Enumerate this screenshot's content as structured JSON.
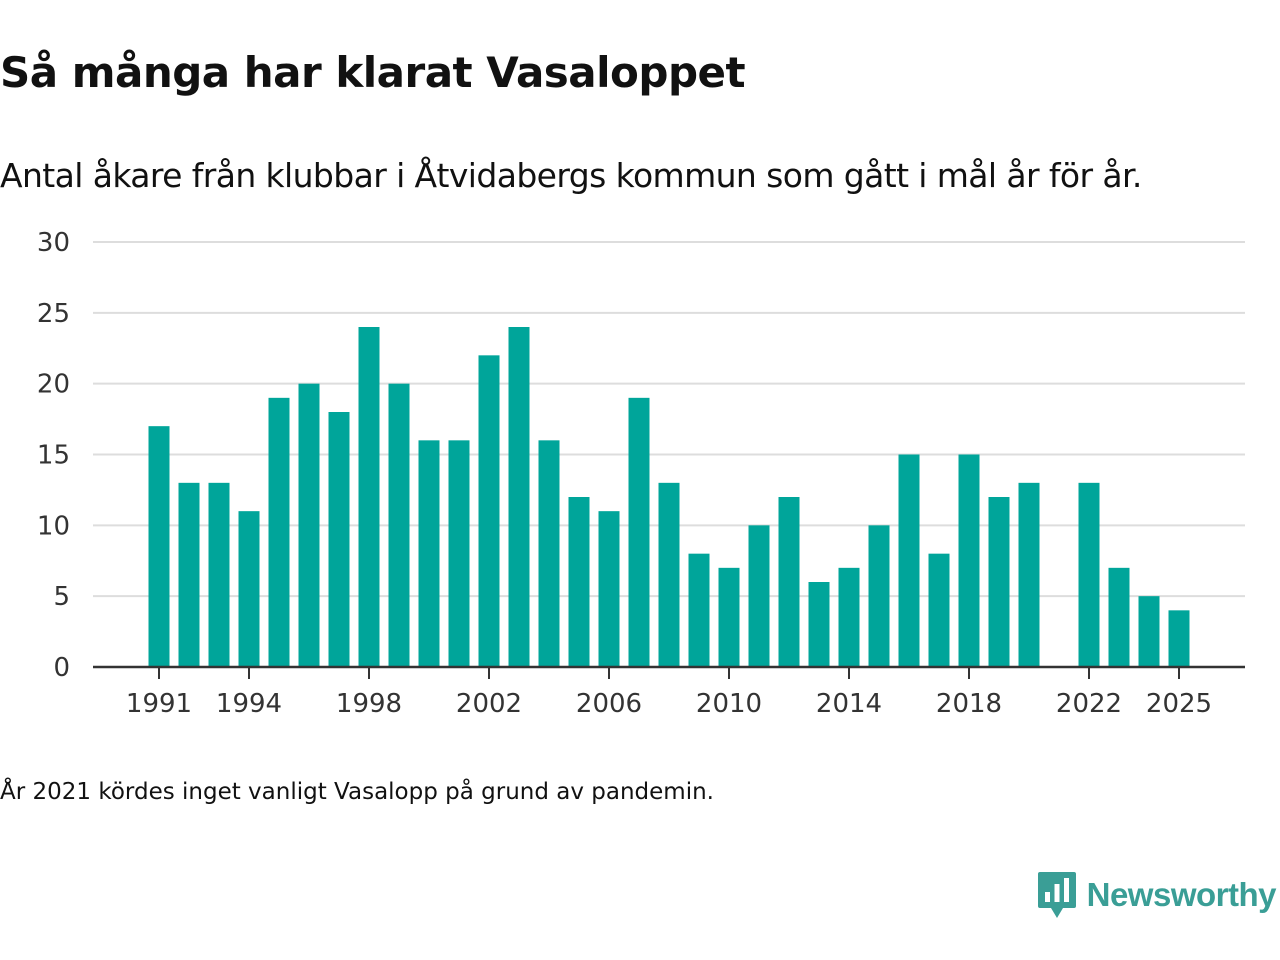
{
  "colors": {
    "bar": "#00a59a",
    "brand": "#3a9e96",
    "grid": "#dddddd",
    "axis": "#333333"
  },
  "brand": {
    "name": "Newsworthy",
    "icon": "newsworthy-logo-icon"
  },
  "note": "År 2021 kördes inget vanligt Vasalopp på grund av pandemin.",
  "chart_data": {
    "type": "bar",
    "title": "Så många har klarat Vasaloppet",
    "subtitle": "Antal åkare från klubbar i Åtvidabergs kommun som gått i mål år för år.",
    "xlabel": "",
    "ylabel": "",
    "ylim": [
      0,
      30
    ],
    "yticks": [
      0,
      5,
      10,
      15,
      20,
      25,
      30
    ],
    "xticks": [
      1991,
      1994,
      1998,
      2002,
      2006,
      2010,
      2014,
      2018,
      2022,
      2025
    ],
    "grid": true,
    "categories": [
      1991,
      1992,
      1993,
      1994,
      1995,
      1996,
      1997,
      1998,
      1999,
      2000,
      2001,
      2002,
      2003,
      2004,
      2005,
      2006,
      2007,
      2008,
      2009,
      2010,
      2011,
      2012,
      2013,
      2014,
      2015,
      2016,
      2017,
      2018,
      2019,
      2020,
      2021,
      2022,
      2023,
      2024,
      2025
    ],
    "values": [
      17,
      13,
      13,
      11,
      19,
      20,
      18,
      24,
      20,
      16,
      16,
      22,
      24,
      16,
      12,
      11,
      19,
      13,
      8,
      7,
      10,
      12,
      6,
      7,
      10,
      15,
      8,
      15,
      12,
      13,
      null,
      13,
      7,
      5,
      4
    ]
  }
}
